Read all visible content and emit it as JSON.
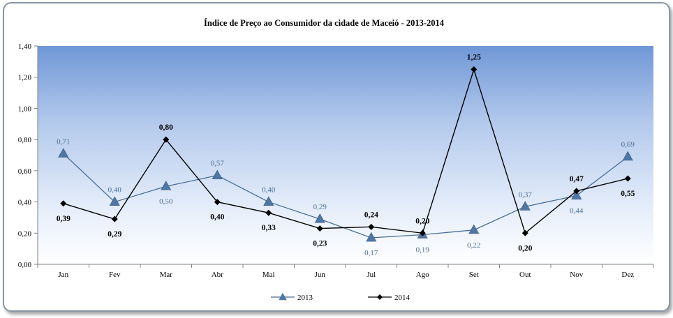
{
  "chart_data": {
    "type": "line",
    "title": "Índice de Preço ao Consumidor da cidade de Maceió - 2013-2014",
    "categories": [
      "Jan",
      "Fev",
      "Mar",
      "Abr",
      "Mai",
      "Jun",
      "Jul",
      "Ago",
      "Set",
      "Out",
      "Nov",
      "Dez"
    ],
    "ylim": [
      0,
      1.4
    ],
    "yticks": [
      "0,00",
      "0,20",
      "0,40",
      "0,60",
      "0,80",
      "1,00",
      "1,20",
      "1,40"
    ],
    "ytick_values": [
      0,
      0.2,
      0.4,
      0.6,
      0.8,
      1.0,
      1.2,
      1.4
    ],
    "legend_position": "bottom",
    "grid": false,
    "series": [
      {
        "name": "2013",
        "marker": "triangle",
        "color": "#4a6f96",
        "values": [
          0.71,
          0.4,
          0.5,
          0.57,
          0.4,
          0.29,
          0.17,
          0.19,
          0.22,
          0.37,
          0.44,
          0.69
        ],
        "labels": [
          "0,71",
          "0,40",
          "0,50",
          "0,57",
          "0,40",
          "0,29",
          "0,17",
          "0,19",
          "0,22",
          "0,37",
          "0,44",
          "0,69"
        ]
      },
      {
        "name": "2014",
        "marker": "diamond",
        "color": "#000000",
        "values": [
          0.39,
          0.29,
          0.8,
          0.4,
          0.33,
          0.23,
          0.24,
          0.2,
          1.25,
          0.2,
          0.47,
          0.55
        ],
        "labels": [
          "0,39",
          "0,29",
          "0,80",
          "0,40",
          "0,33",
          "0,23",
          "0,24",
          "0,20",
          "1,25",
          "0,20",
          "0,47",
          "0,55"
        ]
      }
    ]
  }
}
